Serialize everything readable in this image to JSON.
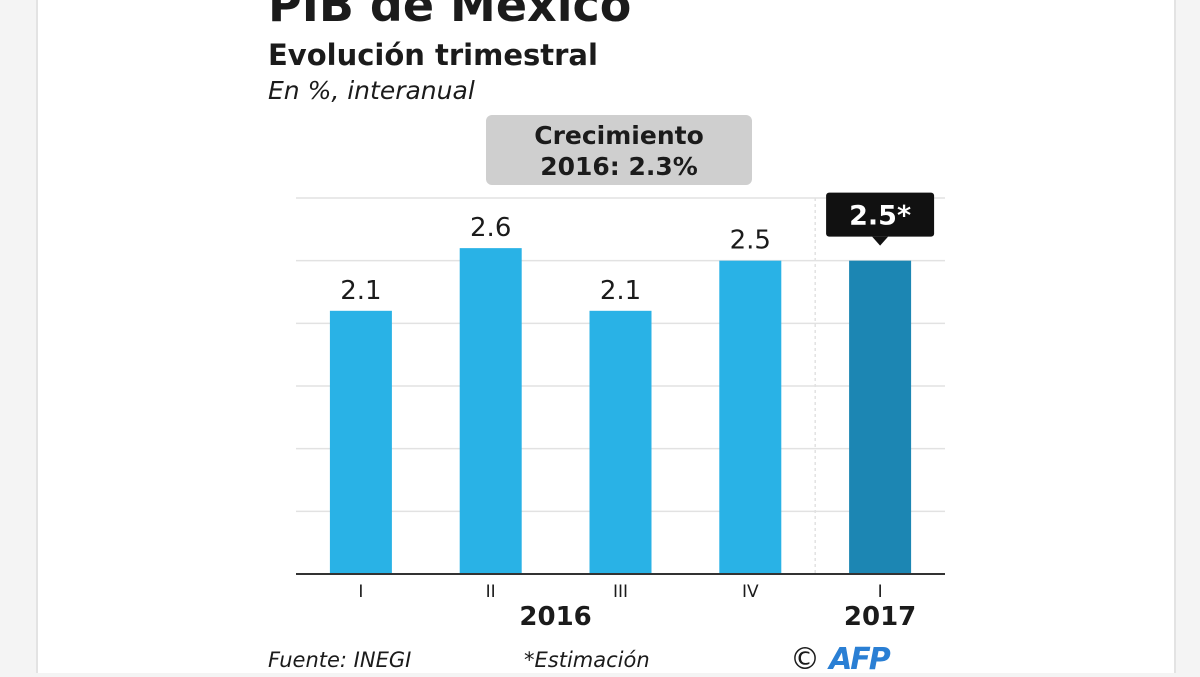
{
  "chart_data": {
    "type": "bar",
    "title": "PIB de México",
    "subtitle": "Evolución trimestral",
    "unit_note": "En %, interanual",
    "callout": {
      "line1": "Crecimiento",
      "line2": "2016: 2.3%"
    },
    "categories": [
      "I",
      "II",
      "III",
      "IV",
      "I"
    ],
    "groups": [
      {
        "label": "2016",
        "from": 0,
        "to": 3
      },
      {
        "label": "2017",
        "from": 4,
        "to": 4
      }
    ],
    "values": [
      2.1,
      2.6,
      2.1,
      2.5,
      2.5
    ],
    "value_labels": [
      "2.1",
      "2.6",
      "2.1",
      "2.5",
      "2.5*"
    ],
    "highlight_index": 4,
    "ylim": [
      0,
      3
    ],
    "grid": true,
    "xlabel": "",
    "ylabel": "",
    "colors": {
      "bar": "#29b2e6",
      "bar_highlight": "#1c86b3",
      "tag_bg": "#111111",
      "grid": "#e2e2e2",
      "axis": "#333333",
      "text": "#1b1b1b"
    }
  },
  "footer": {
    "source": "Fuente: INEGI",
    "note": "*Estimación",
    "copyright": "©",
    "logo": "AFP"
  }
}
